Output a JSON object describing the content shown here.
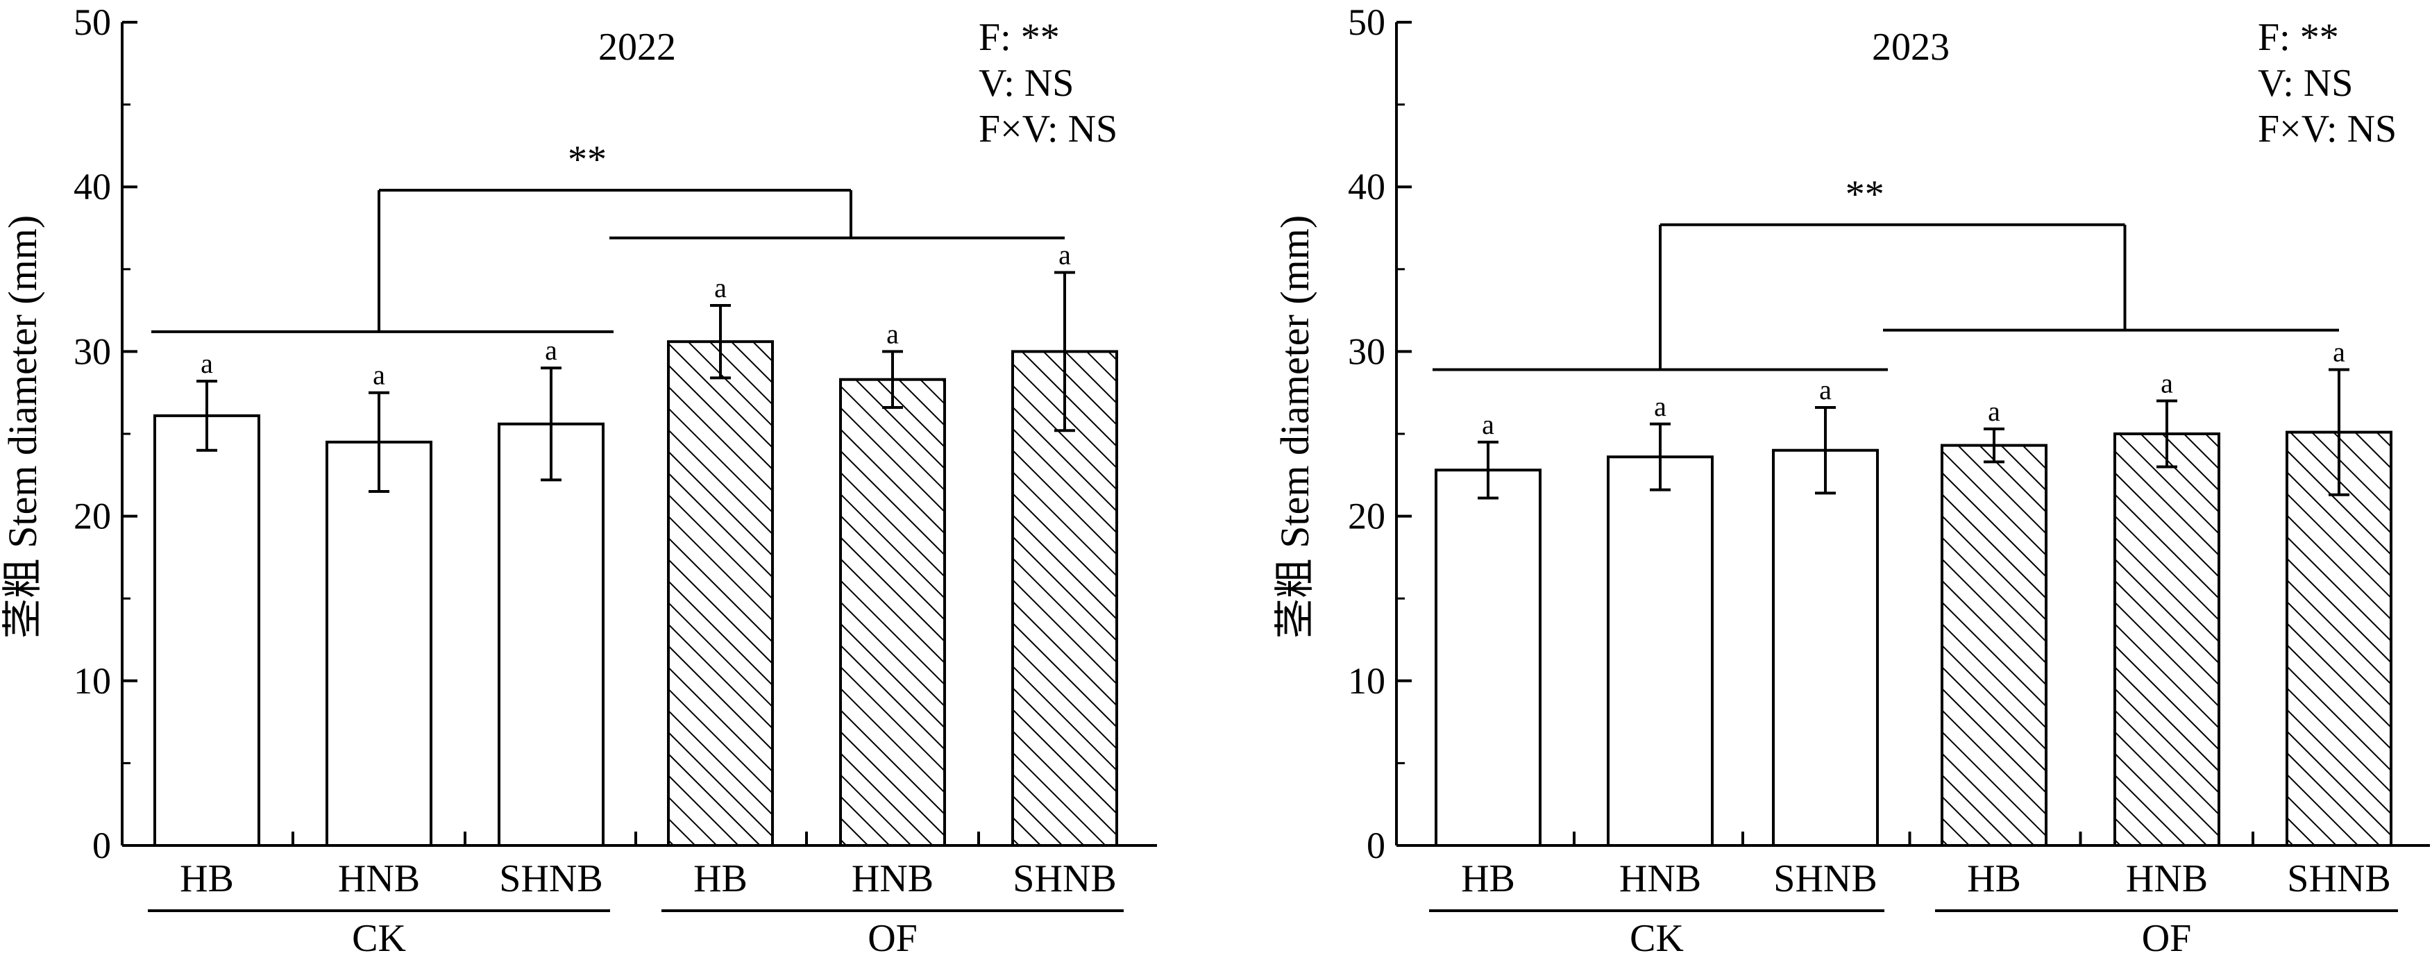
{
  "chart_data": [
    {
      "type": "bar",
      "title": "2022",
      "ylabel": "茎粗 Stem diameter (mm)",
      "ylim": [
        0,
        50
      ],
      "yticks": [
        "0",
        "10",
        "20",
        "30",
        "40",
        "50"
      ],
      "categories": [
        "HB",
        "HNB",
        "SHNB",
        "HB",
        "HNB",
        "SHNB"
      ],
      "groups": [
        {
          "label": "CK",
          "fill": "white"
        },
        {
          "label": "OF",
          "fill": "hatched"
        }
      ],
      "values": [
        26.1,
        24.5,
        25.6,
        30.6,
        28.3,
        30.0
      ],
      "errors": [
        2.1,
        3.0,
        3.4,
        2.2,
        1.7,
        4.8
      ],
      "letters": [
        "a",
        "a",
        "a",
        "a",
        "a",
        "a"
      ],
      "stats": [
        "F: **",
        "V: NS",
        "F×V: NS"
      ],
      "significance": "**",
      "bracket_levels": {
        "ck": 31.2,
        "of": 36.9,
        "top": 39.8
      }
    },
    {
      "type": "bar",
      "title": "2023",
      "ylabel": "茎粗 Stem diameter (mm)",
      "ylim": [
        0,
        50
      ],
      "yticks": [
        "0",
        "10",
        "20",
        "30",
        "40",
        "50"
      ],
      "categories": [
        "HB",
        "HNB",
        "SHNB",
        "HB",
        "HNB",
        "SHNB"
      ],
      "groups": [
        {
          "label": "CK",
          "fill": "white"
        },
        {
          "label": "OF",
          "fill": "hatched"
        }
      ],
      "values": [
        22.8,
        23.6,
        24.0,
        24.3,
        25.0,
        25.1
      ],
      "errors": [
        1.7,
        2.0,
        2.6,
        1.0,
        2.0,
        3.8
      ],
      "letters": [
        "a",
        "a",
        "a",
        "a",
        "a",
        "a"
      ],
      "stats": [
        "F: **",
        "V: NS",
        "F×V: NS"
      ],
      "significance": "**",
      "bracket_levels": {
        "ck": 28.9,
        "of": 31.3,
        "top": 37.7
      }
    }
  ]
}
